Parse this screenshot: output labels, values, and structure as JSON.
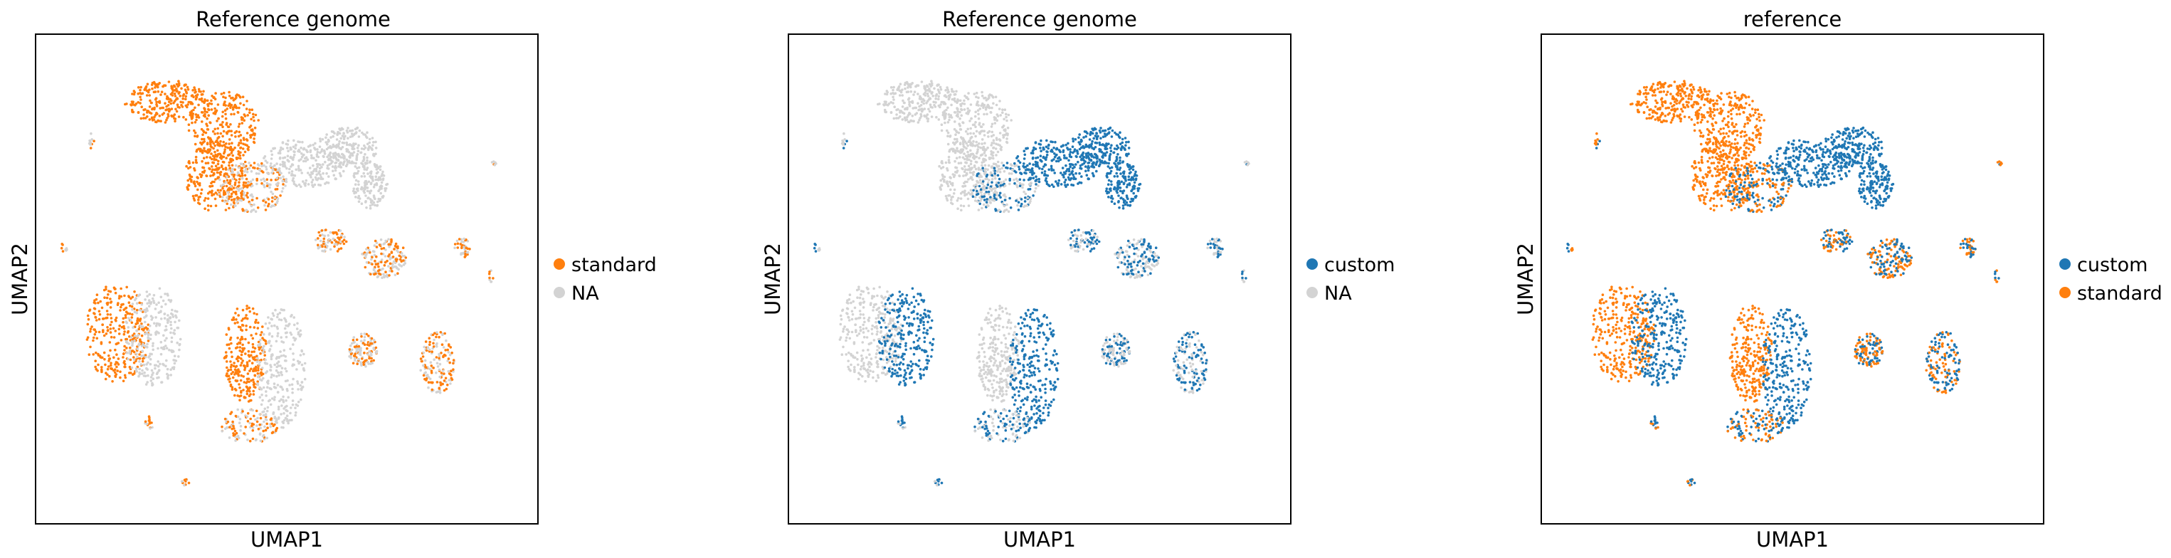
{
  "chart_data": [
    {
      "type": "scatter",
      "title": "Reference genome",
      "xlabel": "UMAP1",
      "ylabel": "UMAP2",
      "ticks_shown": false,
      "legend_position": "right",
      "series": [
        {
          "name": "standard",
          "color": "#ff7f0e"
        },
        {
          "name": "NA",
          "color": "#d3d3d3"
        }
      ]
    },
    {
      "type": "scatter",
      "title": "Reference genome",
      "xlabel": "UMAP1",
      "ylabel": "UMAP2",
      "ticks_shown": false,
      "legend_position": "right",
      "series": [
        {
          "name": "custom",
          "color": "#1f77b4"
        },
        {
          "name": "NA",
          "color": "#d3d3d3"
        }
      ]
    },
    {
      "type": "scatter",
      "title": "reference",
      "xlabel": "UMAP1",
      "ylabel": "UMAP2",
      "ticks_shown": false,
      "legend_position": "right",
      "series": [
        {
          "name": "custom",
          "color": "#1f77b4"
        },
        {
          "name": "standard",
          "color": "#ff7f0e"
        }
      ]
    }
  ]
}
